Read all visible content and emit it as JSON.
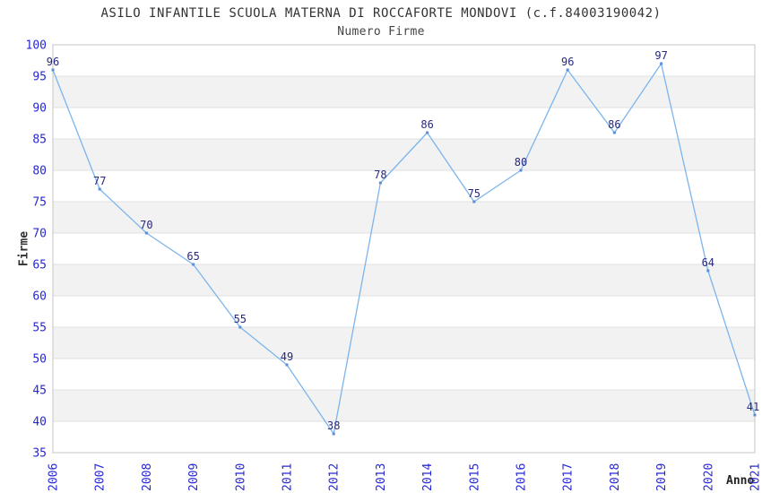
{
  "header": {
    "title": "ASILO INFANTILE SCUOLA MATERNA DI ROCCAFORTE MONDOVI (c.f.84003190042)",
    "subtitle": "Numero Firme"
  },
  "chart_data": {
    "type": "line",
    "title": "ASILO INFANTILE SCUOLA MATERNA DI ROCCAFORTE MONDOVI (c.f.84003190042)",
    "subtitle": "Numero Firme",
    "xlabel": "Anno",
    "ylabel": "Firme",
    "x": [
      2006,
      2007,
      2008,
      2009,
      2010,
      2011,
      2012,
      2013,
      2014,
      2015,
      2016,
      2017,
      2018,
      2019,
      2020,
      2021
    ],
    "values": [
      96,
      77,
      70,
      65,
      55,
      49,
      38,
      78,
      86,
      75,
      80,
      96,
      86,
      97,
      64,
      41
    ],
    "ylim": [
      35,
      100
    ],
    "ytick_step": 5,
    "grid": "horizontal-bands",
    "legend": "none",
    "data_labels": true,
    "colors": {
      "line": "#7cb5ec",
      "marker": "#5b8ed6",
      "tick_label": "#2727d4",
      "data_label": "#28287e",
      "band": "#f2f2f2",
      "grid_line": "#e0e0e0",
      "plot_border": "#c5c5c5",
      "title_text": "#333333"
    }
  }
}
